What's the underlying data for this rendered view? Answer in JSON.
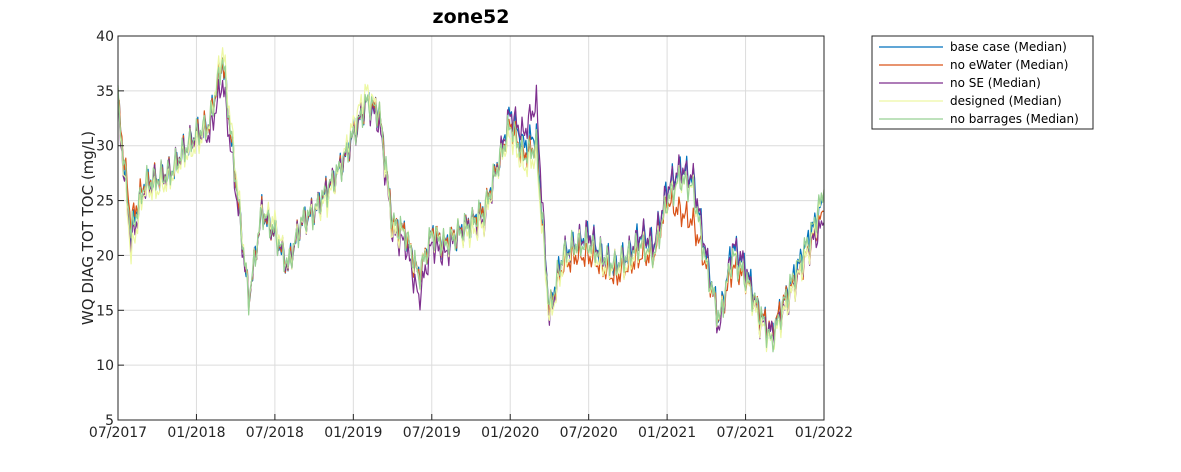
{
  "chart_data": {
    "type": "line",
    "title": "zone52",
    "xlabel": "",
    "ylabel": "WQ DIAG TOT TOC (mg/L)",
    "xlim": [
      "2017-07",
      "2022-01"
    ],
    "ylim": [
      5,
      40
    ],
    "yticks": [
      5,
      10,
      15,
      20,
      25,
      30,
      35,
      40
    ],
    "xticks": [
      "07/2017",
      "01/2018",
      "07/2018",
      "01/2019",
      "07/2019",
      "01/2020",
      "07/2020",
      "01/2021",
      "07/2021",
      "01/2022"
    ],
    "grid": true,
    "legend_position": "outside-top-right",
    "x": [
      "2017-07-01",
      "2017-08-01",
      "2017-09-01",
      "2017-10-01",
      "2017-11-01",
      "2017-12-01",
      "2018-01-01",
      "2018-02-01",
      "2018-03-01",
      "2018-04-01",
      "2018-05-01",
      "2018-06-01",
      "2018-07-01",
      "2018-08-01",
      "2018-09-01",
      "2018-10-01",
      "2018-11-01",
      "2018-12-01",
      "2019-01-01",
      "2019-02-01",
      "2019-03-01",
      "2019-04-01",
      "2019-05-01",
      "2019-06-01",
      "2019-07-01",
      "2019-08-01",
      "2019-09-01",
      "2019-10-01",
      "2019-11-01",
      "2019-12-01",
      "2020-01-01",
      "2020-02-01",
      "2020-03-01",
      "2020-04-01",
      "2020-05-01",
      "2020-06-01",
      "2020-07-01",
      "2020-08-01",
      "2020-09-01",
      "2020-10-01",
      "2020-11-01",
      "2020-12-01",
      "2021-01-01",
      "2021-02-01",
      "2021-03-01",
      "2021-04-01",
      "2021-05-01",
      "2021-06-01",
      "2021-07-01",
      "2021-08-01",
      "2021-09-01",
      "2021-10-01",
      "2021-11-01",
      "2021-12-01",
      "2022-01-01"
    ],
    "series": [
      {
        "name": "base case (Median)",
        "color": "#0072BD",
        "values": [
          34,
          22,
          26.5,
          27,
          27.5,
          29.5,
          31,
          32,
          38,
          27,
          16,
          24,
          22,
          19,
          23,
          24,
          26,
          28,
          31,
          34,
          33,
          23,
          22,
          18,
          22,
          21,
          22,
          23,
          24,
          28,
          33,
          30,
          31,
          15,
          20,
          21,
          22,
          20,
          19,
          20,
          22,
          21,
          26,
          28,
          27,
          20,
          14,
          21,
          19,
          15,
          13,
          16,
          19,
          22,
          25
        ]
      },
      {
        "name": "no eWater (Median)",
        "color": "#D95319",
        "values": [
          34,
          23,
          26.5,
          27,
          27.5,
          29.5,
          31,
          32,
          38,
          27,
          16,
          24,
          22,
          19,
          23,
          24,
          26,
          28,
          31,
          34,
          33,
          23,
          22,
          18,
          22,
          21,
          22,
          23,
          24,
          28,
          32,
          29,
          30,
          15,
          19,
          20,
          20,
          19,
          18,
          19,
          20,
          20,
          25,
          24,
          23,
          19,
          14,
          19,
          18,
          15,
          13,
          16,
          18,
          21,
          24
        ]
      },
      {
        "name": "no SE (Median)",
        "color": "#7E2F8E",
        "values": [
          33,
          21,
          26,
          27,
          27.5,
          29.5,
          31,
          31,
          36,
          26,
          16,
          24,
          22,
          19,
          23,
          24,
          26,
          28,
          31,
          34,
          32,
          22,
          21,
          16,
          21,
          20,
          22,
          23,
          23,
          28,
          33,
          31,
          34,
          14,
          20,
          21,
          22,
          20,
          19,
          20,
          22,
          21,
          26,
          28,
          27,
          20,
          13,
          21,
          19,
          14,
          13,
          15,
          18,
          21,
          23
        ]
      },
      {
        "name": "designed (Median)",
        "color": "#EDF8A3",
        "values": [
          34,
          20,
          26,
          26,
          27,
          29,
          30,
          32,
          39,
          28,
          16,
          24,
          23,
          19,
          23,
          24,
          25,
          28,
          32,
          35,
          33,
          22,
          22,
          18,
          22,
          21,
          22,
          22,
          23,
          28,
          31,
          28,
          29,
          14,
          19,
          21,
          21,
          19,
          19,
          19,
          21,
          20,
          25,
          27,
          26,
          19,
          14,
          20,
          18,
          14,
          12,
          15,
          18,
          21,
          26
        ]
      },
      {
        "name": "no barrages (Median)",
        "color": "#98D194",
        "values": [
          34,
          22,
          26.5,
          27,
          27.5,
          29.5,
          31,
          32,
          38,
          27,
          16,
          24,
          22,
          19,
          23,
          24,
          26,
          28,
          31,
          34,
          33,
          23,
          22,
          18,
          22,
          21,
          22,
          23,
          24,
          28,
          32,
          29,
          30,
          15,
          20,
          21,
          21,
          20,
          19,
          20,
          21,
          20,
          25,
          27,
          26,
          19,
          14,
          20,
          18,
          15,
          12,
          16,
          19,
          22,
          26
        ]
      }
    ]
  }
}
